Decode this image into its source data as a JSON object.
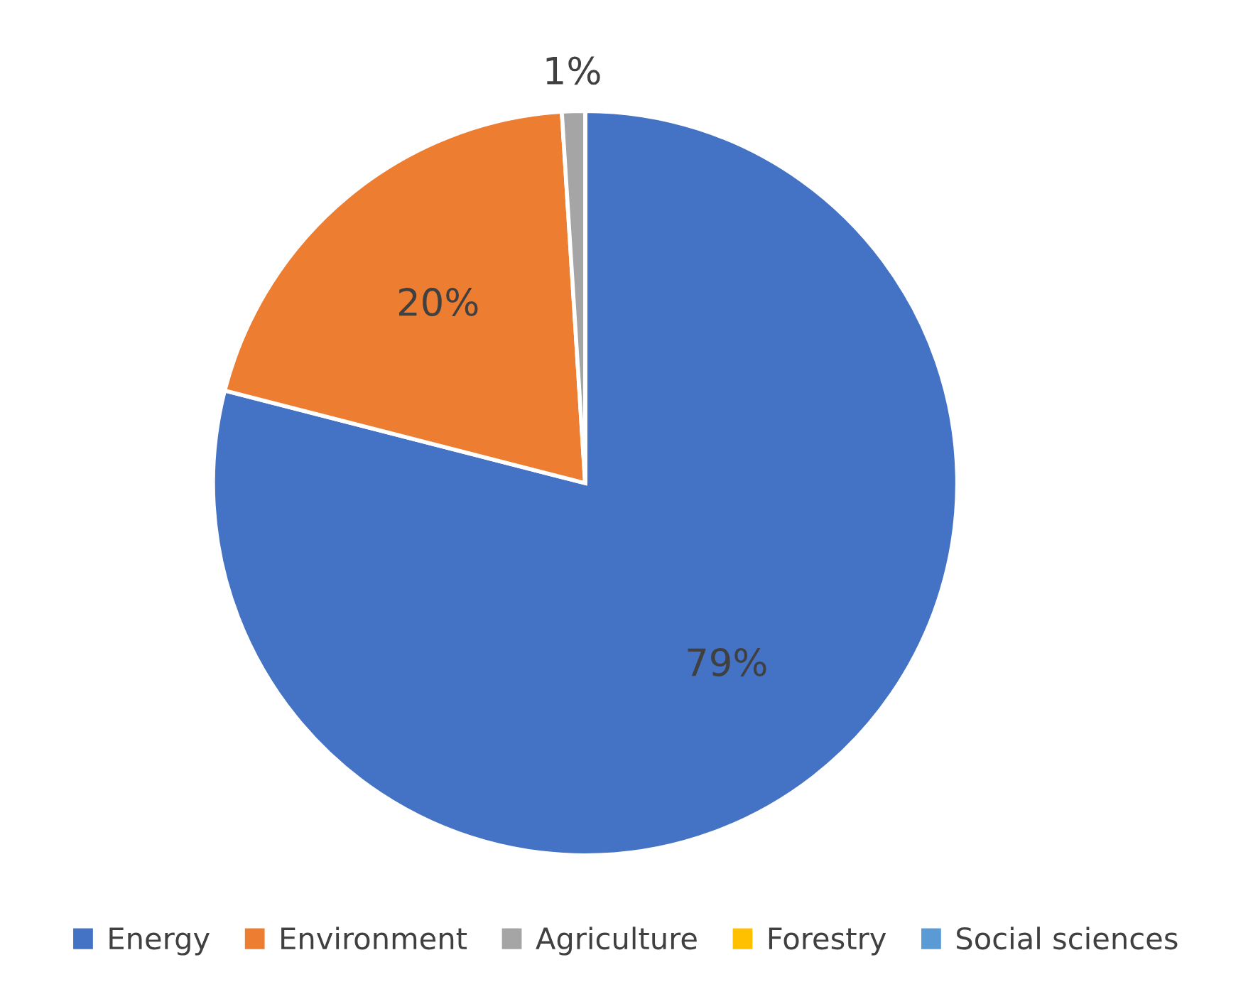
{
  "chart_data": {
    "type": "pie",
    "categories": [
      "Energy",
      "Environment",
      "Agriculture",
      "Forestry",
      "Social sciences"
    ],
    "values": [
      79,
      20,
      1,
      0,
      0
    ],
    "value_labels": [
      "79%",
      "20%",
      "1%",
      null,
      null
    ],
    "colors": [
      "#4472c4",
      "#ed7d31",
      "#a5a5a5",
      "#ffc000",
      "#5b9bd5"
    ],
    "legend": "bottom"
  }
}
